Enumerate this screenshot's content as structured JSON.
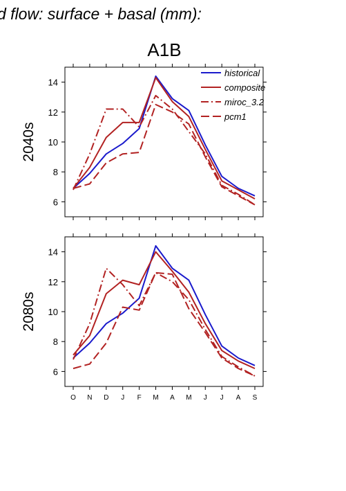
{
  "header": {
    "title": "d flow: surface + basal (mm):",
    "scenario": "A1B"
  },
  "chart_data": [
    {
      "type": "line",
      "panel_label": "2040s",
      "categories": [
        "O",
        "N",
        "D",
        "J",
        "F",
        "M",
        "A",
        "M",
        "J",
        "J",
        "A",
        "S"
      ],
      "ylim": [
        5,
        15
      ],
      "yticks": [
        6,
        8,
        10,
        12,
        14
      ],
      "grid": false,
      "legend_position": "top-right",
      "series": [
        {
          "name": "historical",
          "color": "#1a1acc",
          "dash": "solid",
          "values": [
            6.9,
            7.9,
            9.2,
            9.9,
            10.9,
            14.4,
            12.9,
            12.1,
            9.8,
            7.7,
            6.9,
            6.4
          ]
        },
        {
          "name": "composite",
          "color": "#b22222",
          "dash": "solid",
          "values": [
            6.9,
            8.3,
            10.3,
            11.3,
            11.3,
            14.3,
            12.7,
            11.7,
            9.5,
            7.4,
            6.8,
            6.2
          ]
        },
        {
          "name": "miroc_3.2",
          "color": "#b22222",
          "dash": "dashdot",
          "values": [
            6.8,
            9.2,
            12.2,
            12.2,
            11.0,
            13.1,
            12.2,
            10.7,
            9.2,
            7.1,
            6.5,
            5.8
          ]
        },
        {
          "name": "pcm1",
          "color": "#b22222",
          "dash": "dashed",
          "values": [
            6.9,
            7.2,
            8.6,
            9.2,
            9.3,
            12.5,
            12.0,
            11.2,
            9.0,
            7.0,
            6.4,
            5.8
          ]
        }
      ]
    },
    {
      "type": "line",
      "panel_label": "2080s",
      "categories": [
        "O",
        "N",
        "D",
        "J",
        "F",
        "M",
        "A",
        "M",
        "J",
        "J",
        "A",
        "S"
      ],
      "ylim": [
        5,
        15
      ],
      "yticks": [
        6,
        8,
        10,
        12,
        14
      ],
      "grid": false,
      "series": [
        {
          "name": "historical",
          "color": "#1a1acc",
          "dash": "solid",
          "values": [
            6.9,
            7.9,
            9.2,
            9.9,
            10.9,
            14.4,
            12.9,
            12.1,
            9.8,
            7.7,
            6.9,
            6.4
          ]
        },
        {
          "name": "composite",
          "color": "#b22222",
          "dash": "solid",
          "values": [
            7.1,
            8.4,
            11.2,
            12.1,
            11.8,
            14.0,
            12.7,
            11.3,
            9.2,
            7.4,
            6.7,
            6.2
          ]
        },
        {
          "name": "miroc_3.2",
          "color": "#b22222",
          "dash": "dashdot",
          "values": [
            6.8,
            9.2,
            12.9,
            11.8,
            10.4,
            12.6,
            12.0,
            10.8,
            8.8,
            7.0,
            6.3,
            5.7
          ]
        },
        {
          "name": "pcm1",
          "color": "#b22222",
          "dash": "dashed",
          "values": [
            6.2,
            6.5,
            7.9,
            10.3,
            10.1,
            12.6,
            12.5,
            10.2,
            8.6,
            6.9,
            6.2,
            5.7
          ]
        }
      ]
    }
  ]
}
